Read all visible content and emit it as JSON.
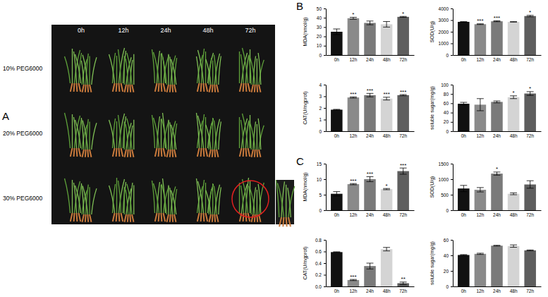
{
  "panels": [
    {
      "label": "A",
      "columns": [
        "0h",
        "12h",
        "24h",
        "48h",
        "72h"
      ],
      "rows": [
        "10% PEG6000",
        "20% PEG6000",
        "30% PEG6000"
      ]
    },
    {
      "label": "B"
    },
    {
      "label": "C"
    }
  ],
  "chart_data": [
    {
      "type": "bar",
      "y_label": "MDA(nmol/g)",
      "categories": [
        "0h",
        "12h",
        "24h",
        "48h",
        "72h"
      ],
      "values": [
        25,
        39.5,
        34.5,
        33,
        41
      ],
      "errors": [
        3,
        1,
        2,
        3,
        0.5
      ],
      "annotations": [
        null,
        "*",
        null,
        null,
        "*"
      ],
      "colors": [
        "#111111",
        "#8a8a8a",
        "#7a7a7a",
        "#d4d4d4",
        "#5e5e5e"
      ],
      "ylim": [
        0,
        50
      ],
      "yticks": [
        0,
        10,
        20,
        30,
        40,
        50
      ]
    },
    {
      "type": "bar",
      "y_label": "SOD(U/g)",
      "categories": [
        "0h",
        "12h",
        "24h",
        "48h",
        "72h"
      ],
      "values": [
        2850,
        2650,
        2900,
        2850,
        3350
      ],
      "errors": [
        20,
        30,
        40,
        20,
        60
      ],
      "annotations": [
        null,
        "***",
        "***",
        null,
        "*"
      ],
      "colors": [
        "#111111",
        "#8a8a8a",
        "#7a7a7a",
        "#d4d4d4",
        "#5e5e5e"
      ],
      "ylim": [
        0,
        4000
      ],
      "yticks": [
        0,
        1000,
        2000,
        3000,
        4000
      ]
    },
    {
      "type": "bar",
      "y_label": "CAT(U/mgprot)",
      "categories": [
        "0h",
        "12h",
        "24h",
        "48h",
        "72h"
      ],
      "values": [
        1.85,
        2.9,
        3.1,
        2.8,
        3.1
      ],
      "errors": [
        0.03,
        0.05,
        0.15,
        0.12,
        0.05
      ],
      "annotations": [
        null,
        "***",
        "***",
        "***",
        "***"
      ],
      "colors": [
        "#111111",
        "#8a8a8a",
        "#7a7a7a",
        "#d4d4d4",
        "#5e5e5e"
      ],
      "ylim": [
        0,
        4
      ],
      "yticks": [
        0,
        1,
        2,
        3,
        4
      ]
    },
    {
      "type": "bar",
      "y_label": "soluble sugar(mg/g)",
      "categories": [
        "0h",
        "12h",
        "24h",
        "48h",
        "72h"
      ],
      "values": [
        59,
        57,
        63,
        73,
        81
      ],
      "errors": [
        3,
        13,
        2,
        3,
        4
      ],
      "annotations": [
        null,
        null,
        null,
        "*",
        "*"
      ],
      "colors": [
        "#111111",
        "#8a8a8a",
        "#7a7a7a",
        "#d4d4d4",
        "#5e5e5e"
      ],
      "ylim": [
        0,
        100
      ],
      "yticks": [
        0,
        20,
        40,
        60,
        80,
        100
      ]
    },
    {
      "type": "bar",
      "y_label": "MDA(nmol/g)",
      "categories": [
        "0h",
        "12h",
        "24h",
        "48h",
        "72h"
      ],
      "values": [
        5.3,
        8.4,
        10,
        6.8,
        12.6
      ],
      "errors": [
        0.7,
        0.2,
        0.8,
        0.2,
        1
      ],
      "annotations": [
        null,
        "***",
        "***",
        "*",
        "***"
      ],
      "colors": [
        "#111111",
        "#8a8a8a",
        "#7a7a7a",
        "#d4d4d4",
        "#5e5e5e"
      ],
      "ylim": [
        0,
        15
      ],
      "yticks": [
        0,
        5,
        10,
        15
      ]
    },
    {
      "type": "bar",
      "y_label": "SOD(U/g)",
      "categories": [
        "0h",
        "12h",
        "24h",
        "48h",
        "72h"
      ],
      "values": [
        700,
        660,
        1180,
        530,
        830
      ],
      "errors": [
        100,
        70,
        50,
        30,
        120
      ],
      "annotations": [
        null,
        null,
        "*",
        null,
        null
      ],
      "colors": [
        "#111111",
        "#8a8a8a",
        "#7a7a7a",
        "#d4d4d4",
        "#5e5e5e"
      ],
      "ylim": [
        0,
        1500
      ],
      "yticks": [
        0,
        500,
        1000,
        1500
      ]
    },
    {
      "type": "bar",
      "y_label": "CAT(U/mgprot)",
      "categories": [
        "0h",
        "12h",
        "24h",
        "48h",
        "72h"
      ],
      "values": [
        0.59,
        0.11,
        0.35,
        0.64,
        0.055
      ],
      "errors": [
        0.005,
        0.01,
        0.05,
        0.03,
        0.02
      ],
      "annotations": [
        null,
        "***",
        null,
        null,
        "**"
      ],
      "colors": [
        "#111111",
        "#8a8a8a",
        "#7a7a7a",
        "#d4d4d4",
        "#5e5e5e"
      ],
      "ylim": [
        0,
        0.8
      ],
      "yticks": [
        {
          "value": 0,
          "label": "0.0"
        },
        0.2,
        0.4,
        0.6,
        0.8
      ]
    },
    {
      "type": "bar",
      "y_label": "soluble sugar(mg/g)",
      "categories": [
        "0h",
        "12h",
        "24h",
        "48h",
        "72h"
      ],
      "values": [
        40.5,
        42,
        52.5,
        52,
        46.5
      ],
      "errors": [
        0.5,
        0.8,
        0.5,
        1.5,
        0.5
      ],
      "colors": [
        "#111111",
        "#8a8a8a",
        "#7a7a7a",
        "#d4d4d4",
        "#5e5e5e"
      ],
      "ylim": [
        0,
        60
      ],
      "yticks": [
        0,
        20,
        40,
        60
      ]
    }
  ]
}
